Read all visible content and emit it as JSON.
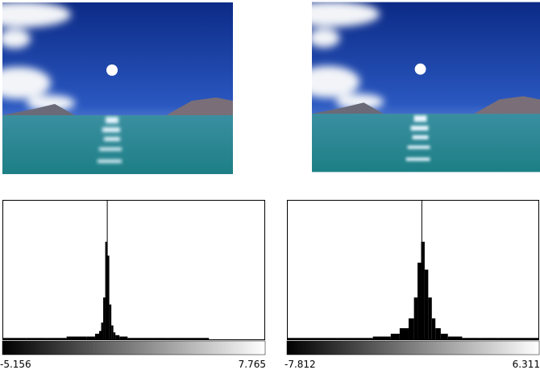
{
  "chart_data": [
    {
      "type": "histogram",
      "bins": [
        -5.156,
        -4,
        -3,
        -2,
        -1,
        -0.6,
        -0.4,
        -0.3,
        -0.2,
        -0.1,
        0,
        0.1,
        0.2,
        0.3,
        0.4,
        0.6,
        1,
        2,
        3,
        4,
        5,
        6,
        7.765
      ],
      "values": [
        1,
        1,
        1,
        2,
        2,
        4,
        6,
        12,
        30,
        70,
        60,
        25,
        10,
        5,
        3,
        2,
        1,
        1,
        1,
        1,
        0,
        0
      ],
      "marker_x": 0,
      "color": "#000000",
      "xlim": [
        -5.156,
        7.765
      ],
      "xticks": [
        -5.156,
        7.765
      ],
      "ylim": [
        0,
        100
      ]
    },
    {
      "type": "histogram",
      "bins": [
        -7.812,
        -5,
        -3,
        -2,
        -1.5,
        -1,
        -0.7,
        -0.5,
        -0.3,
        -0.1,
        0.1,
        0.3,
        0.5,
        0.8,
        1.2,
        2,
        3,
        4,
        6.311
      ],
      "values": [
        1,
        1,
        2,
        4,
        8,
        15,
        30,
        55,
        70,
        50,
        30,
        15,
        8,
        4,
        2,
        1,
        1,
        1
      ],
      "marker_x": -0.26,
      "color": "#000000",
      "xlim": [
        -7.812,
        6.311
      ],
      "xticks": [
        -7.812,
        6.311
      ],
      "ylim": [
        0,
        100
      ]
    }
  ]
}
